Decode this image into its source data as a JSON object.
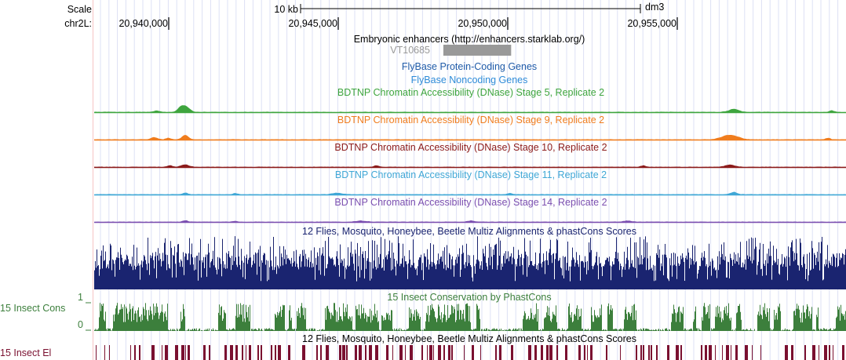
{
  "ruler": {
    "scale_label": "Scale",
    "chrom_label": "chr2L:",
    "scalebar_label": "10 kb",
    "assembly": "dm3",
    "positions": [
      {
        "label": "20,940,000",
        "pos": 20940000
      },
      {
        "label": "20,945,000",
        "pos": 20945000
      },
      {
        "label": "20,950,000",
        "pos": 20950000
      },
      {
        "label": "20,955,000",
        "pos": 20955000
      }
    ]
  },
  "tracks": {
    "enhancers": {
      "title": "Embryonic enhancers (http://enhancers.starklab.org/)",
      "feature_name": "VT10685",
      "feature_start": 20948100,
      "feature_end": 20950100,
      "feature_color": "#999999"
    },
    "flybase_coding": {
      "title": "FlyBase Protein-Coding Genes",
      "color": "#1E5AA8"
    },
    "flybase_noncoding": {
      "title": "FlyBase Noncoding Genes",
      "color": "#2E8BD8"
    },
    "dnase": [
      {
        "title": "BDTNP Chromatin Accessibility (DNase) Stage 5, Replicate 2",
        "color": "#3EA53E"
      },
      {
        "title": "BDTNP Chromatin Accessibility (DNase) Stage 9, Replicate 2",
        "color": "#F07D1E"
      },
      {
        "title": "BDTNP Chromatin Accessibility (DNase) Stage 10, Replicate 2",
        "color": "#8B1A1A"
      },
      {
        "title": "BDTNP Chromatin Accessibility (DNase) Stage 11, Replicate 2",
        "color": "#3FA7D6"
      },
      {
        "title": "BDTNP Chromatin Accessibility (DNase) Stage 14, Replicate 2",
        "color": "#7B4FB0"
      }
    ],
    "multiz": {
      "title": "12 Flies, Mosquito, Honeybee, Beetle Multiz Alignments & phastCons Scores",
      "color": "#1A2470"
    },
    "phastcons": {
      "title": "15 Insect Conservation by PhastCons",
      "side_label": "15 Insect Cons",
      "axis_max": "1",
      "axis_min": "0",
      "color": "#3C7F3C"
    },
    "elements": {
      "title": "12 Flies, Mosquito, Honeybee, Beetle Multiz Alignments & phastCons Scores",
      "side_label": "15 Insect El",
      "color": "#7A1030"
    }
  }
}
